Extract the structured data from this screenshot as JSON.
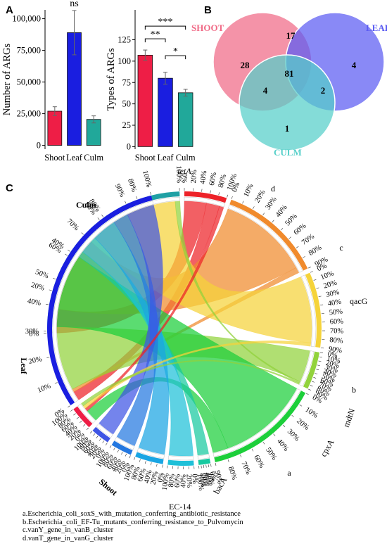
{
  "panels": {
    "a": "A",
    "b": "B",
    "c": "C"
  },
  "chart_data": [
    {
      "type": "bar",
      "panel": "A",
      "categories": [
        "Shoot",
        "Leaf",
        "Culm"
      ],
      "values": [
        27000,
        89000,
        20500
      ],
      "errors": [
        3500,
        17500,
        2800
      ],
      "colors": [
        "#ee1e46",
        "#1a1ee0",
        "#21a89a"
      ],
      "ylabel": "Number of ARGs",
      "yticks": [
        0,
        25000,
        50000,
        75000,
        100000
      ],
      "ytick_labels": [
        "0",
        "25,000",
        "50,000",
        "75,000",
        "100,000"
      ],
      "ylim": [
        -3000,
        107000
      ],
      "annotation": "ns"
    },
    {
      "type": "bar",
      "panel": "A",
      "categories": [
        "Shoot",
        "Leaf",
        "Culm"
      ],
      "values": [
        107,
        80,
        63
      ],
      "errors": [
        6,
        7,
        4
      ],
      "colors": [
        "#ee1e46",
        "#1a1ee0",
        "#21a89a"
      ],
      "ylabel": "Types of ARGs",
      "yticks": [
        0,
        25,
        50,
        75,
        100,
        125
      ],
      "ytick_labels": [
        "0",
        "25",
        "50",
        "75",
        "100",
        "125"
      ],
      "ylim": [
        -3,
        160
      ],
      "significance": [
        {
          "from": "Shoot",
          "to": "Culm",
          "label": "***"
        },
        {
          "from": "Shoot",
          "to": "Leaf",
          "label": "**"
        },
        {
          "from": "Leaf",
          "to": "Culm",
          "label": "*"
        }
      ]
    },
    {
      "type": "venn",
      "panel": "B",
      "sets": [
        {
          "name": "SHOOT",
          "color": "#f06a86"
        },
        {
          "name": "LEAF",
          "color": "#5b5cf2"
        },
        {
          "name": "CULM",
          "color": "#55cfc9"
        }
      ],
      "regions": {
        "shoot_only": 28,
        "leaf_only": 4,
        "culm_only": 1,
        "shoot_leaf": 17,
        "shoot_culm": 4,
        "leaf_culm": 2,
        "all": 81
      }
    },
    {
      "type": "chord",
      "panel": "C",
      "groups": [
        {
          "name": "Culm",
          "color": "#1fa0a4",
          "ticks": [
            "0%",
            "20%",
            "40%",
            "60%",
            "80%",
            "100%"
          ],
          "scale": "20%"
        },
        {
          "name": "tetA",
          "color": "#ed2228",
          "ticks": [
            "0%",
            "20%",
            "40%",
            "60%",
            "80%",
            "100%"
          ],
          "scale": "20%"
        },
        {
          "name": "d",
          "color": "#f08a2c",
          "ticks": [
            "0%",
            "10%",
            "20%",
            "30%",
            "40%",
            "50%",
            "60%",
            "70%",
            "80%",
            "90%"
          ],
          "scale": "10%"
        },
        {
          "name": "c",
          "color": "#f5d33a",
          "ticks": [
            "0%",
            "10%",
            "20%",
            "30%",
            "40%",
            "50%",
            "60%",
            "70%",
            "80%",
            "90%"
          ],
          "scale": "10%"
        },
        {
          "name": "qacG",
          "color": "#92d23c",
          "ticks": [
            "0%",
            "10%",
            "20%",
            "30%",
            "40%",
            "50%",
            "60%",
            "70%",
            "80%",
            "90%"
          ],
          "scale": "10%"
        },
        {
          "name": "b",
          "color": "#1ccf3a",
          "ticks": [
            "0%",
            "10%",
            "20%",
            "30%",
            "40%",
            "50%",
            "60%",
            "70%",
            "80%",
            "90%"
          ],
          "scale": "10%"
        },
        {
          "name": "mdtN",
          "color": "#17c9a0",
          "ticks": [
            "0%",
            "20%",
            "40%",
            "60%",
            "80%",
            "100%"
          ],
          "scale": "20%"
        },
        {
          "name": "cpxA",
          "color": "#1fc0d8",
          "ticks": [
            "0%",
            "20%",
            "40%",
            "60%",
            "80%",
            "100%"
          ],
          "scale": "20%"
        },
        {
          "name": "a",
          "color": "#1aa5e3",
          "ticks": [
            "0%",
            "20%",
            "40%",
            "60%",
            "80%",
            "100%"
          ],
          "scale": "20%"
        },
        {
          "name": "bacA",
          "color": "#2478e0",
          "ticks": [
            "0%",
            "20%",
            "40%",
            "60%",
            "80%",
            "100%"
          ],
          "scale": "20%"
        },
        {
          "name": "EC-14",
          "color": "#3f55e4",
          "ticks": [
            "0%",
            "20%",
            "40%",
            "60%",
            "80%",
            "100%"
          ],
          "scale": "20%"
        },
        {
          "name": "Shoot",
          "color": "#ee1e46",
          "ticks": [
            "0%",
            "20%",
            "40%",
            "60%",
            "80%",
            "100%"
          ],
          "scale": "20%"
        },
        {
          "name": "Leaf",
          "color": "#1a1ee0",
          "ticks": [
            "0%",
            "10%",
            "20%",
            "30%",
            "40%",
            "50%",
            "60%",
            "70%",
            "80%",
            "90%",
            "100%"
          ],
          "scale": "10%"
        }
      ],
      "flows": [
        {
          "source": "tetA",
          "target": "Culm",
          "value": 5
        },
        {
          "source": "tetA",
          "target": "Leaf",
          "value": 3
        },
        {
          "source": "d",
          "target": "Culm",
          "value": 16
        },
        {
          "source": "d",
          "target": "Leaf",
          "value": 1
        },
        {
          "source": "c",
          "target": "Culm",
          "value": 20
        },
        {
          "source": "qacG",
          "target": "Leaf",
          "value": 21
        },
        {
          "source": "qacG",
          "target": "Culm",
          "value": 1
        },
        {
          "source": "b",
          "target": "Leaf",
          "value": 24
        },
        {
          "source": "b",
          "target": "Shoot",
          "value": 4
        },
        {
          "source": "mdtN",
          "target": "Leaf",
          "value": 2
        },
        {
          "source": "cpxA",
          "target": "Leaf",
          "value": 6
        },
        {
          "source": "a",
          "target": "Leaf",
          "value": 8
        },
        {
          "source": "bacA",
          "target": "Leaf",
          "value": 5
        },
        {
          "source": "EC-14",
          "target": "Leaf",
          "value": 9
        },
        {
          "source": "tetA",
          "target": "Shoot",
          "value": 1
        },
        {
          "source": "c",
          "target": "Shoot",
          "value": 1
        },
        {
          "source": "qacG",
          "target": "Shoot",
          "value": 1
        }
      ]
    }
  ],
  "footnotes": [
    "a.Escherichia_coli_soxS_with_mutation_conferring_antibiotic_resistance",
    "b.Escherichia_coli_EF-Tu_mutants_conferring_resistance_to_Pulvomycin",
    "c.vanY_gene_in_vanB_cluster",
    "d.vanT_gene_in_vanG_cluster"
  ]
}
